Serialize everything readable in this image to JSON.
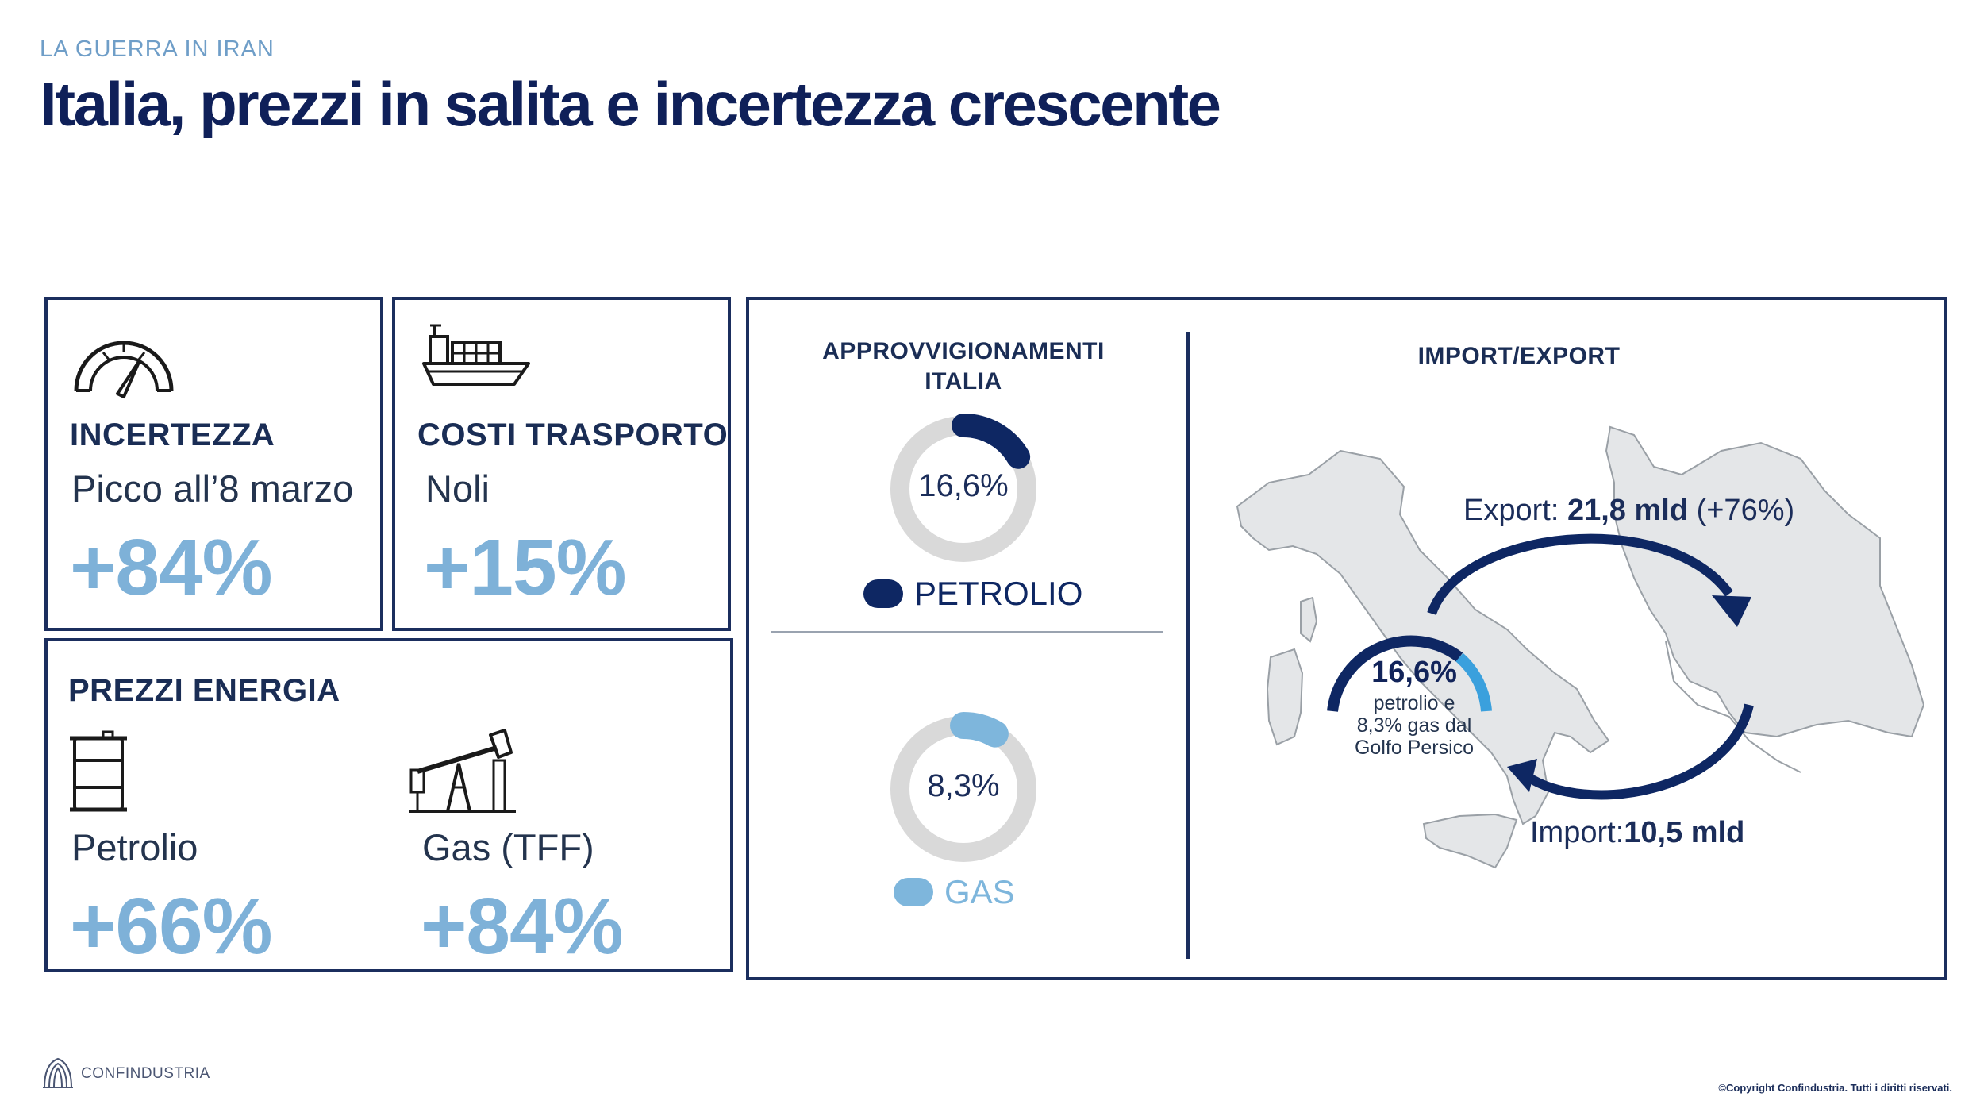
{
  "header": {
    "kicker": "LA GUERRA IN IRAN",
    "title": "Italia, prezzi in salita e incertezza crescente"
  },
  "cards": {
    "incertezza": {
      "title": "INCERTEZZA",
      "subtitle": "Picco all’8 marzo",
      "value": "+84%",
      "icon": "speedometer-icon"
    },
    "trasporto": {
      "title": "COSTI TRASPORTO",
      "subtitle": "Noli",
      "value": "+15%",
      "icon": "cargo-ship-icon"
    },
    "energia": {
      "title": "PREZZI ENERGIA",
      "items": [
        {
          "label": "Petrolio",
          "value": "+66%",
          "icon": "oil-barrel-icon"
        },
        {
          "label": "Gas (TFF)",
          "value": "+84%",
          "icon": "oil-pump-icon"
        }
      ]
    }
  },
  "approvvigionamenti": {
    "title_line1": "APPROVVIGIONAMENTI",
    "title_line2": "ITALIA",
    "petrolio": {
      "value_label": "16,6%",
      "share": 0.166,
      "legend": "PETROLIO",
      "color": "#0e2763"
    },
    "gas": {
      "value_label": "8,3%",
      "share": 0.083,
      "legend": "GAS",
      "color": "#7eb6dc"
    },
    "track_color": "#d9d9d9"
  },
  "import_export": {
    "title": "IMPORT/EXPORT",
    "export_label": "Export: ",
    "export_value": "21,8 mld",
    "export_change": " (+76%)",
    "import_label": "Import:",
    "import_value": "10,5 mld",
    "center_value": "16,6%",
    "center_line1": "petrolio e",
    "center_line2": "8,3% gas dal",
    "center_line3": "Golfo Persico"
  },
  "footer": {
    "logo_text": "CONFINDUSTRIA",
    "copyright": "©Copyright Confindustria. Tutti i diritti riservati."
  }
}
